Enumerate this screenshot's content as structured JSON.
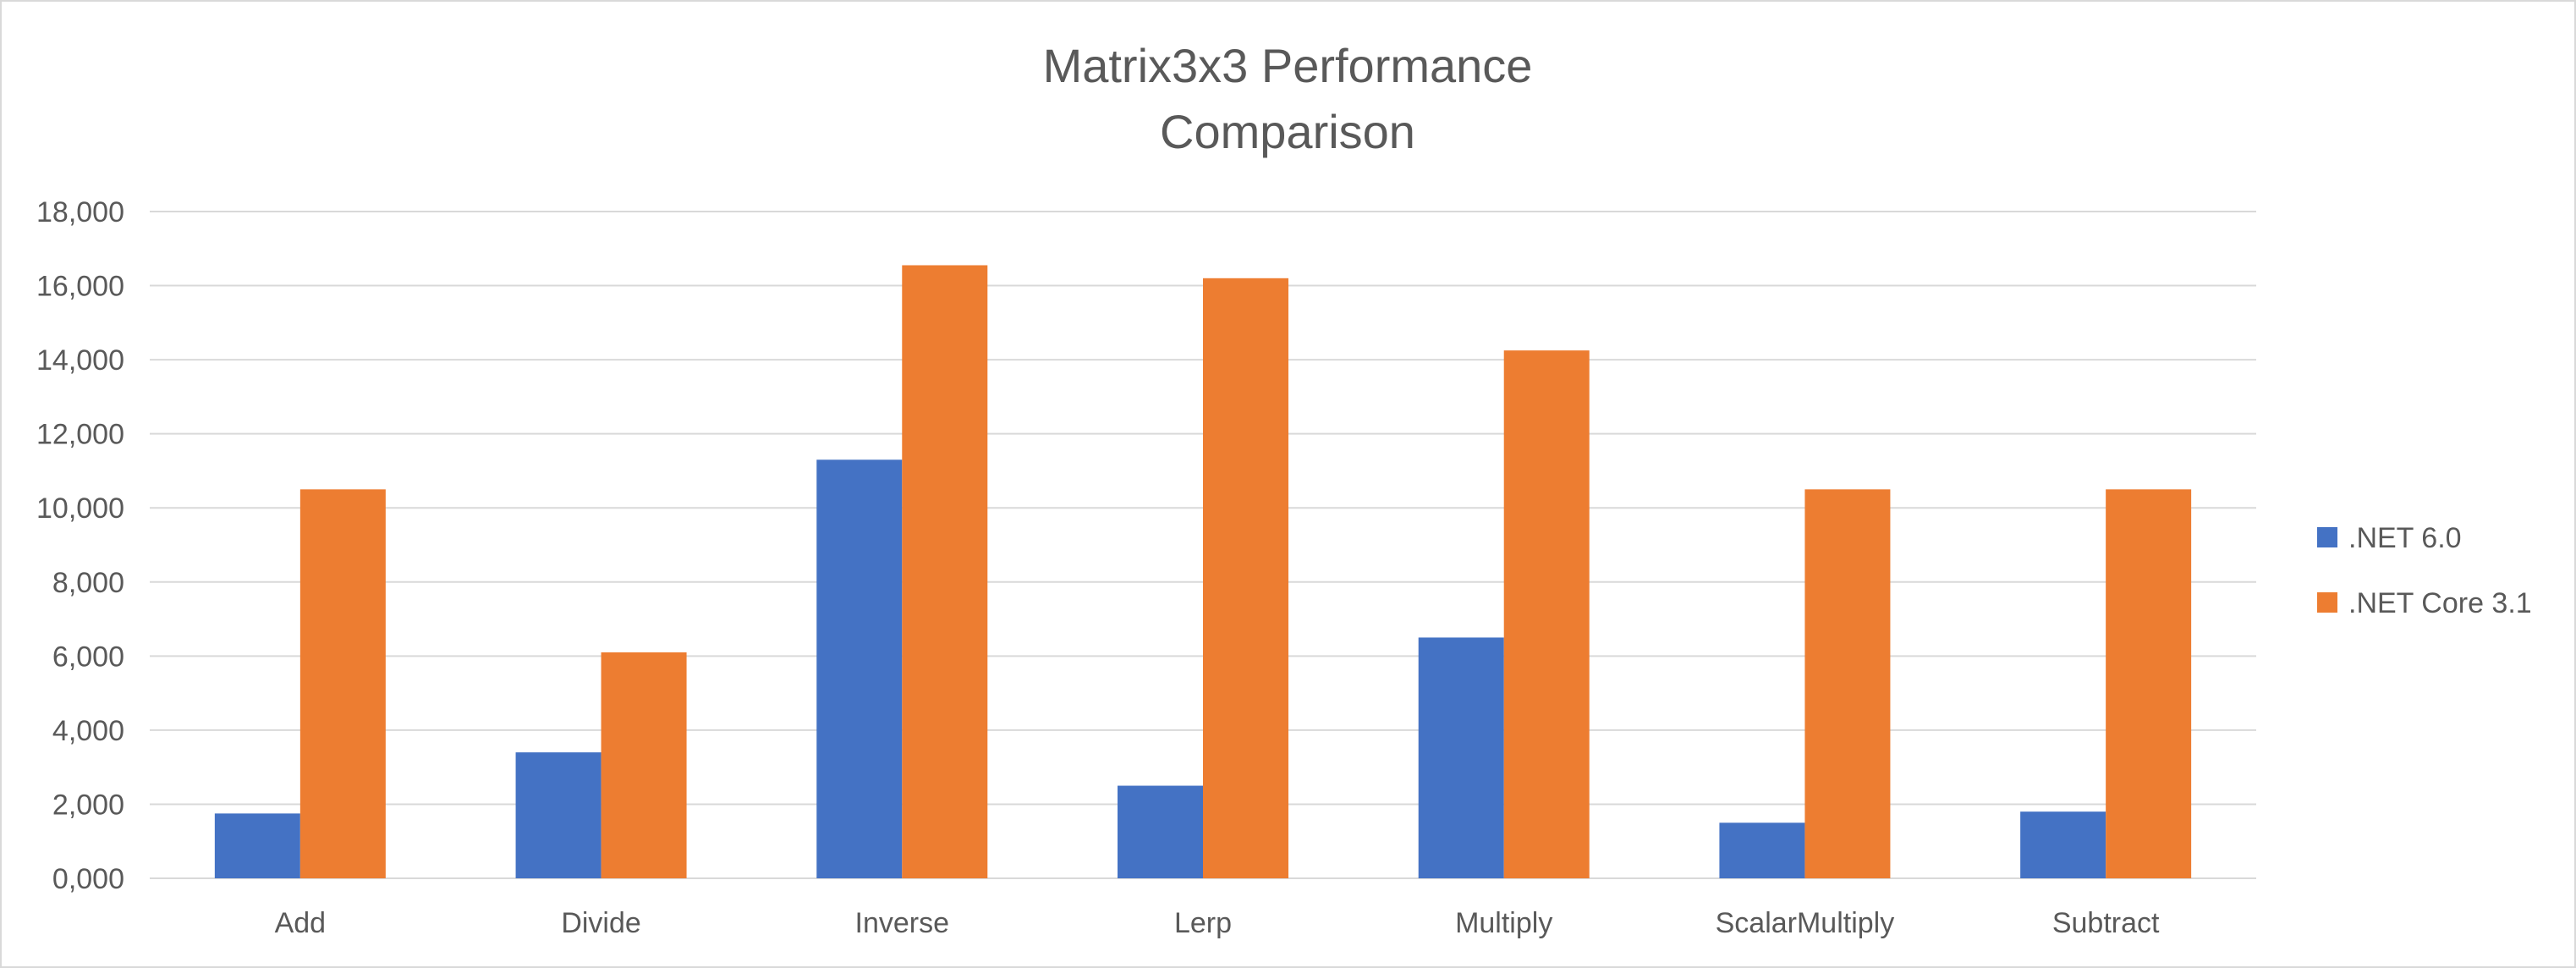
{
  "chart_data": {
    "type": "bar",
    "title_lines": [
      "Matrix3x3 Performance",
      "Comparison"
    ],
    "categories": [
      "Add",
      "Divide",
      "Inverse",
      "Lerp",
      "Multiply",
      "ScalarMultiply",
      "Subtract"
    ],
    "series": [
      {
        "name": ".NET 6.0",
        "color": "#4472c4",
        "values": [
          1750,
          3400,
          11300,
          2500,
          6500,
          1500,
          1800
        ]
      },
      {
        "name": ".NET Core 3.1",
        "color": "#ed7d31",
        "values": [
          10500,
          6100,
          16550,
          16200,
          14250,
          10500,
          10500
        ]
      }
    ],
    "ylim": [
      0,
      18000
    ],
    "ytick_step": 2000,
    "ytick_labels": [
      "0,000",
      "2,000",
      "4,000",
      "6,000",
      "8,000",
      "10,000",
      "12,000",
      "14,000",
      "16,000",
      "18,000"
    ],
    "xlabel": "",
    "ylabel": "",
    "grid": true,
    "legend_position": "right",
    "gridline_color": "#d9d9d9"
  }
}
